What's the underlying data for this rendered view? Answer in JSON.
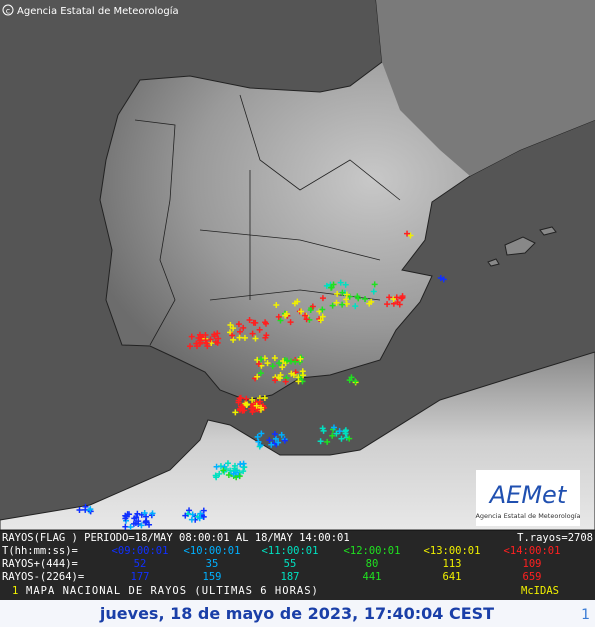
{
  "header": {
    "credit": "Agencia Estatal de Meteorología"
  },
  "logo": {
    "name": "AEMet",
    "subtitle": "Agencia Estatal de Meteorología"
  },
  "legend": {
    "title": "RAYOS(FLAG ) PERIODO=18/MAY 08:00:01 AL 18/MAY 14:00:01",
    "total": "T.rayos=2708",
    "time_label": "T(hh:mm:ss)=",
    "times": [
      "<09:00:01",
      "<10:00:01",
      "<11:00:01",
      "<12:00:01",
      "<13:00:01",
      "<14:00:01"
    ],
    "colors": [
      "#1030ff",
      "#00b0ff",
      "#00e0c0",
      "#20e020",
      "#f0f000",
      "#ff2020"
    ],
    "positive_label": "RAYOS+(444)=",
    "positive": [
      "52",
      "35",
      "55",
      "80",
      "113",
      "109"
    ],
    "negative_label": "RAYOS-(2264)=",
    "negative": [
      "177",
      "159",
      "187",
      "441",
      "641",
      "659"
    ]
  },
  "footer": {
    "index": "1",
    "caption": "MAPA NACIONAL DE RAYOS (ULTIMAS 6 HORAS)",
    "system": "McIDAS"
  },
  "banner": {
    "date": "jueves, 18 de mayo de 2023, 17:40:04 CEST",
    "page": "1"
  }
}
